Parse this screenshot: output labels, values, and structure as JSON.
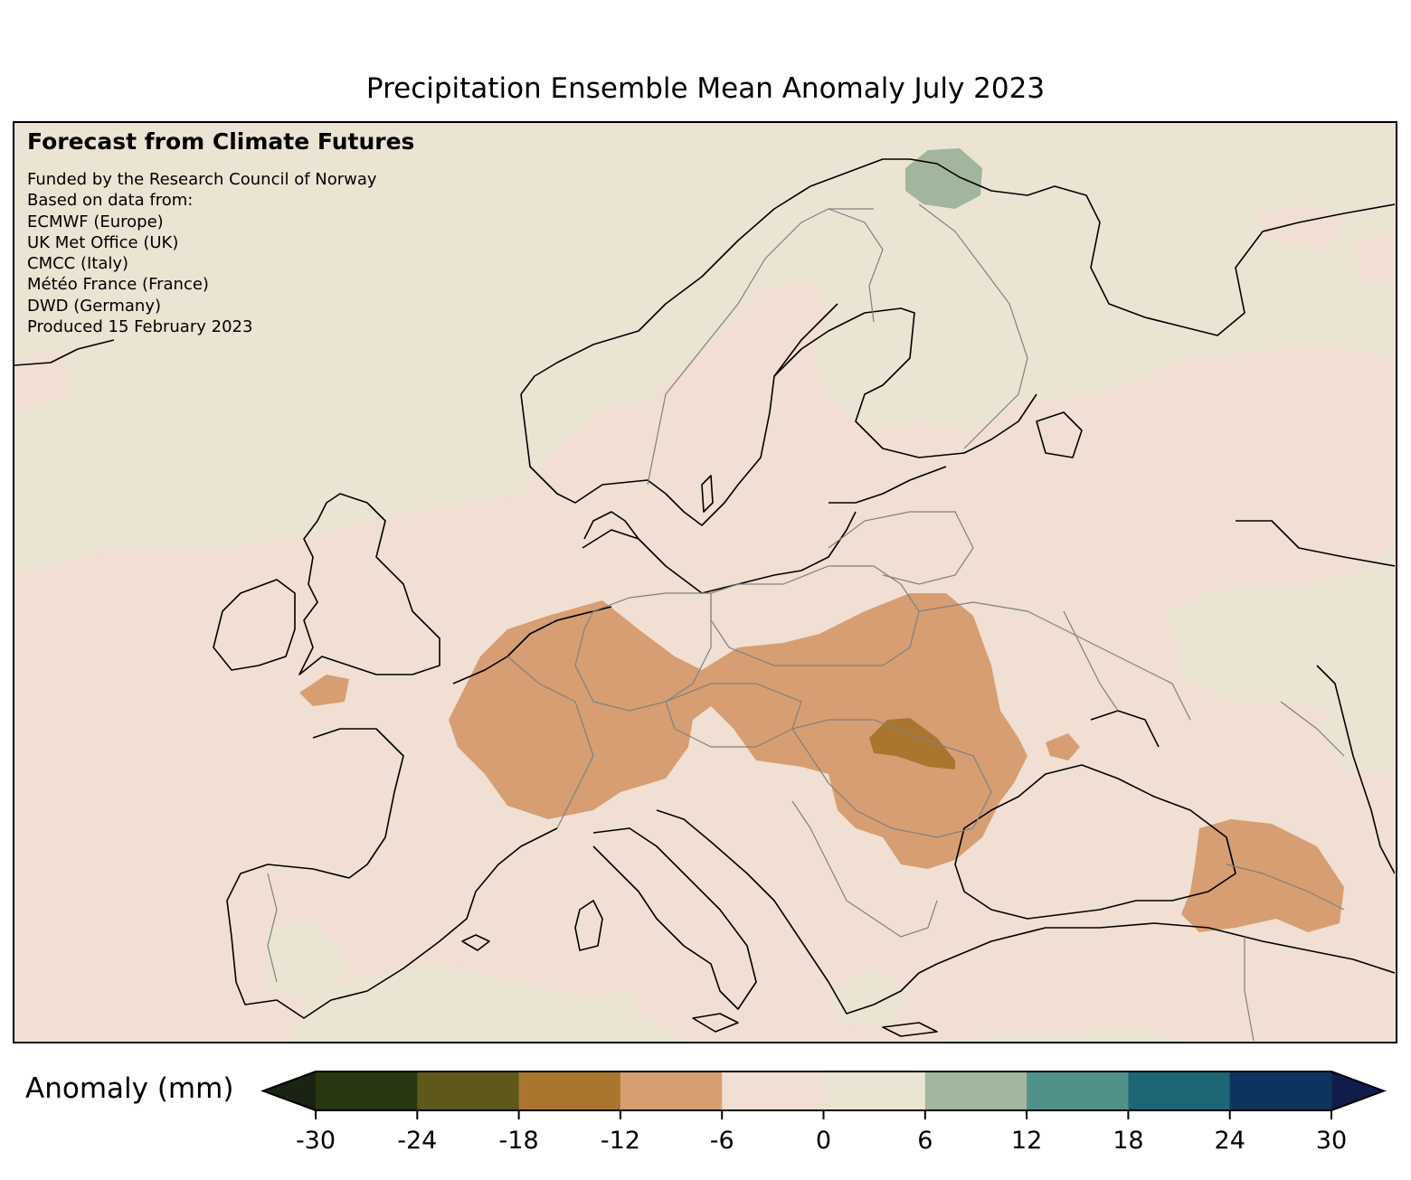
{
  "title": "Precipitation Ensemble Mean Anomaly July 2023",
  "credits": {
    "heading": "Forecast from Climate Futures",
    "lines": [
      "Funded by the Research Council of Norway",
      "Based on data from:",
      "ECMWF (Europe)",
      "UK Met Office (UK)",
      "CMCC (Italy)",
      "Météo France (France)",
      "DWD (Germany)",
      "Produced 15 February 2023"
    ]
  },
  "colorbar": {
    "label": "Anomaly (mm)",
    "ticks": [
      "-30",
      "-24",
      "-18",
      "-12",
      "-6",
      "0",
      "6",
      "12",
      "18",
      "24",
      "30"
    ],
    "under_color": "#1b2412",
    "over_color": "#121c4a",
    "bins": [
      {
        "from": -30,
        "to": -24,
        "color": "#283611"
      },
      {
        "from": -24,
        "to": -18,
        "color": "#5e581b"
      },
      {
        "from": -18,
        "to": -12,
        "color": "#a97630"
      },
      {
        "from": -12,
        "to": -6,
        "color": "#d69e72"
      },
      {
        "from": -6,
        "to": 0,
        "color": "#f0dfd2"
      },
      {
        "from": 0,
        "to": 6,
        "color": "#ebe4d3"
      },
      {
        "from": 6,
        "to": 12,
        "color": "#a1b69c"
      },
      {
        "from": 12,
        "to": 18,
        "color": "#52908a"
      },
      {
        "from": 18,
        "to": 24,
        "color": "#1c6675"
      },
      {
        "from": 24,
        "to": 30,
        "color": "#0c345f"
      }
    ]
  },
  "map": {
    "region": "Europe",
    "coastline_color": "#000000",
    "border_color": "#808080",
    "anomaly_areas": [
      {
        "region": "Western Europe (Benelux, northern France, Germany)",
        "bin": "-12 to -6",
        "color": "#d69e72"
      },
      {
        "region": "Eastern Europe (Poland, Slovakia, Hungary, Romania)",
        "bin": "-12 to -6",
        "color": "#d69e72"
      },
      {
        "region": "Western Ukraine",
        "bin": "-18 to -12",
        "color": "#a97630"
      },
      {
        "region": "Caucasus",
        "bin": "-12 to -6",
        "color": "#d69e72"
      },
      {
        "region": "Cornwall (UK)",
        "bin": "-12 to -6",
        "color": "#d69e72"
      },
      {
        "region": "Crimea",
        "bin": "-12 to -6",
        "color": "#d69e72"
      },
      {
        "region": "Kola Peninsula / northern Norway",
        "bin": "6 to 12",
        "color": "#a1b69c"
      }
    ]
  }
}
